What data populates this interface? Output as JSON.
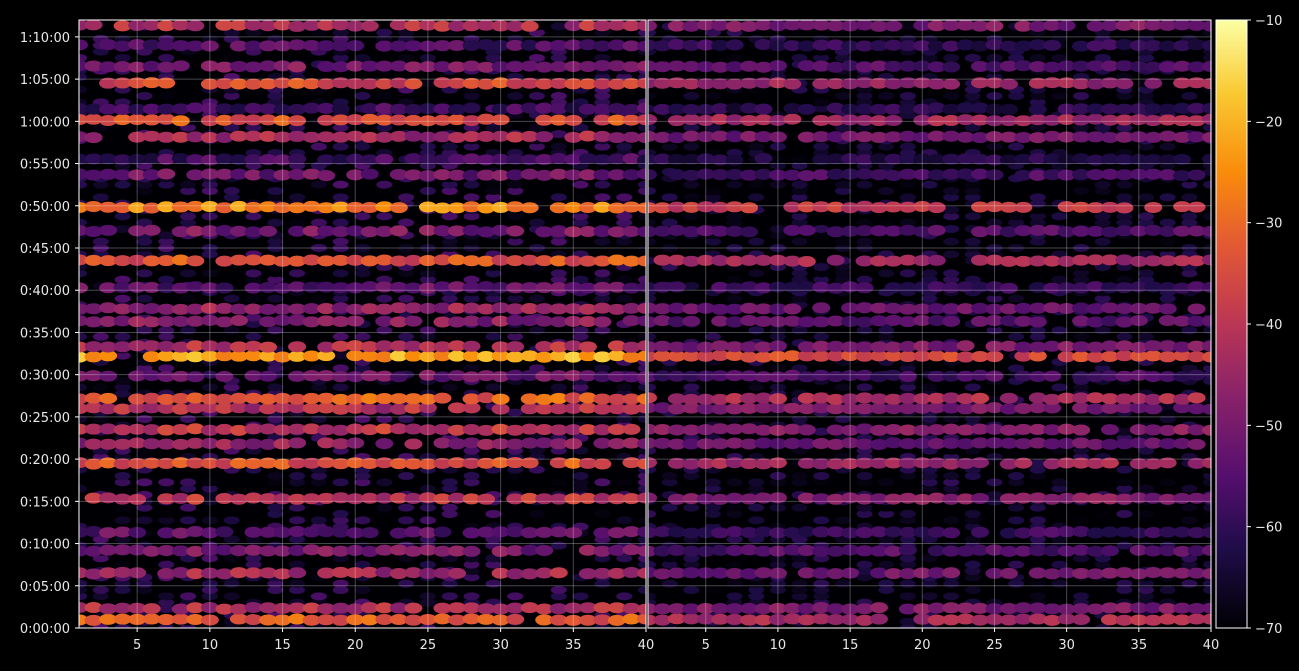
{
  "chart_data": {
    "type": "heatmap",
    "title": "",
    "background": "#000000",
    "colormap": "inferno",
    "grid": true,
    "panels": [
      {
        "name": "",
        "x_range": [
          1,
          40
        ],
        "x_ticks": [
          5,
          10,
          15,
          20,
          25,
          30,
          35,
          40
        ],
        "intensity_scale": 1.0
      },
      {
        "name": "",
        "x_range": [
          1,
          40
        ],
        "x_ticks": [
          5,
          10,
          15,
          20,
          25,
          30,
          35,
          40
        ],
        "intensity_scale": 0.72
      }
    ],
    "y_axis": {
      "ticks_seconds": [
        0,
        300,
        600,
        900,
        1200,
        1500,
        1800,
        2100,
        2400,
        2700,
        3000,
        3300,
        3600,
        3900,
        4200
      ],
      "tick_labels": [
        "0:00:00",
        "0:05:00",
        "0:10:00",
        "0:15:00",
        "0:20:00",
        "0:25:00",
        "0:30:00",
        "0:35:00",
        "0:40:00",
        "0:45:00",
        "0:50:00",
        "0:55:00",
        "1:00:00",
        "1:05:00",
        "1:10:00"
      ],
      "range_seconds": [
        0,
        4320
      ]
    },
    "colorbar": {
      "range": [
        -70,
        -10
      ],
      "ticks": [
        -70,
        -60,
        -50,
        -40,
        -30,
        -20,
        -10
      ],
      "tick_labels": [
        "−70",
        "−60",
        "−50",
        "−40",
        "−30",
        "−20",
        "−10"
      ]
    },
    "bands": [
      {
        "t": 60,
        "level": -32
      },
      {
        "t": 140,
        "level": -42
      },
      {
        "t": 390,
        "level": -44
      },
      {
        "t": 550,
        "level": -50
      },
      {
        "t": 680,
        "level": -54
      },
      {
        "t": 920,
        "level": -40
      },
      {
        "t": 1170,
        "level": -34
      },
      {
        "t": 1310,
        "level": -46
      },
      {
        "t": 1410,
        "level": -40
      },
      {
        "t": 1560,
        "level": -42
      },
      {
        "t": 1630,
        "level": -32
      },
      {
        "t": 1790,
        "level": -52
      },
      {
        "t": 1930,
        "level": -22
      },
      {
        "t": 2000,
        "level": -42
      },
      {
        "t": 2180,
        "level": -48
      },
      {
        "t": 2270,
        "level": -46
      },
      {
        "t": 2420,
        "level": -54
      },
      {
        "t": 2610,
        "level": -34
      },
      {
        "t": 2820,
        "level": -50
      },
      {
        "t": 2990,
        "level": -26
      },
      {
        "t": 3220,
        "level": -52
      },
      {
        "t": 3330,
        "level": -58
      },
      {
        "t": 3490,
        "level": -44
      },
      {
        "t": 3610,
        "level": -34
      },
      {
        "t": 3690,
        "level": -58
      },
      {
        "t": 3870,
        "level": -36
      },
      {
        "t": 3990,
        "level": -50
      },
      {
        "t": 4140,
        "level": -56
      },
      {
        "t": 4280,
        "level": -42
      }
    ]
  }
}
